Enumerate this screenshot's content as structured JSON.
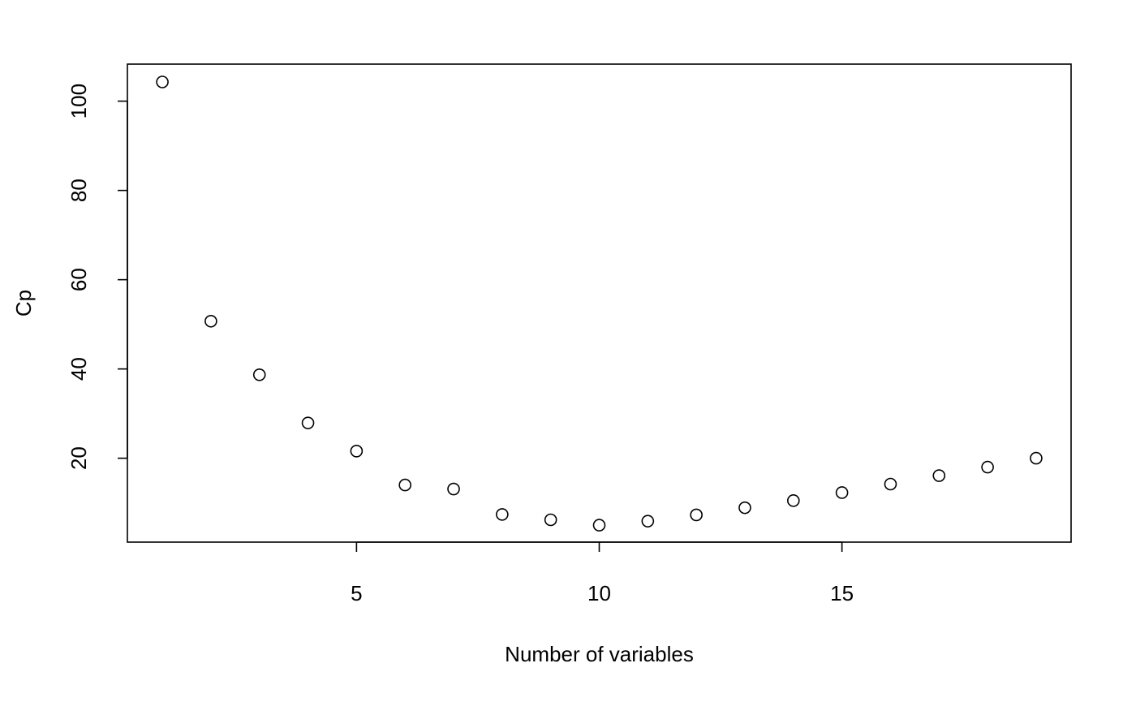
{
  "chart_data": {
    "type": "scatter",
    "title": "",
    "xlabel": "Number of variables",
    "ylabel": "Cp",
    "xlim": [
      0.28,
      19.72
    ],
    "ylim": [
      1.2,
      108.3
    ],
    "x_ticks": [
      5,
      10,
      15
    ],
    "y_ticks": [
      20,
      40,
      60,
      80,
      100
    ],
    "grid": false,
    "marker": "open-circle",
    "series": [
      {
        "x": [
          1,
          2,
          3,
          4,
          5,
          6,
          7,
          8,
          9,
          10,
          11,
          12,
          13,
          14,
          15,
          16,
          17,
          18,
          19
        ],
        "y": [
          104.3,
          50.7,
          38.7,
          27.9,
          21.6,
          14.0,
          13.1,
          7.4,
          6.2,
          5.0,
          5.9,
          7.3,
          8.9,
          10.5,
          12.3,
          14.2,
          16.1,
          18.0,
          20.0
        ]
      }
    ]
  }
}
